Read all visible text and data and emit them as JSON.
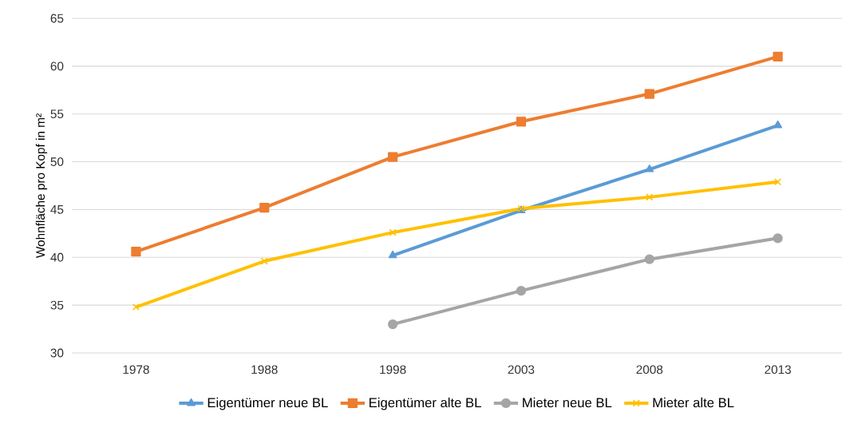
{
  "chart_data": {
    "type": "line",
    "ylabel": "Wohnfläche pro Kopf in m²",
    "categories": [
      "1978",
      "1988",
      "1998",
      "2003",
      "2008",
      "2013"
    ],
    "series": [
      {
        "name": "Eigentümer neue BL",
        "color": "#5b9bd5",
        "marker": "triangle",
        "values": [
          null,
          null,
          40.2,
          44.9,
          49.2,
          53.8
        ]
      },
      {
        "name": "Eigentümer alte BL",
        "color": "#ed7d31",
        "marker": "square",
        "values": [
          40.6,
          45.2,
          50.5,
          54.2,
          57.1,
          61.0
        ]
      },
      {
        "name": "Mieter neue BL",
        "color": "#a5a5a5",
        "marker": "circle",
        "values": [
          null,
          null,
          33.0,
          36.5,
          39.8,
          42.0
        ]
      },
      {
        "name": "Mieter alte BL",
        "color": "#ffc000",
        "marker": "cross",
        "values": [
          34.8,
          39.6,
          42.6,
          45.1,
          46.3,
          47.9
        ]
      }
    ],
    "ylim": [
      30,
      65
    ],
    "yticks": [
      30,
      35,
      40,
      45,
      50,
      55,
      60,
      65
    ],
    "grid": "y",
    "legend": "bottom",
    "line_style": "solid"
  }
}
